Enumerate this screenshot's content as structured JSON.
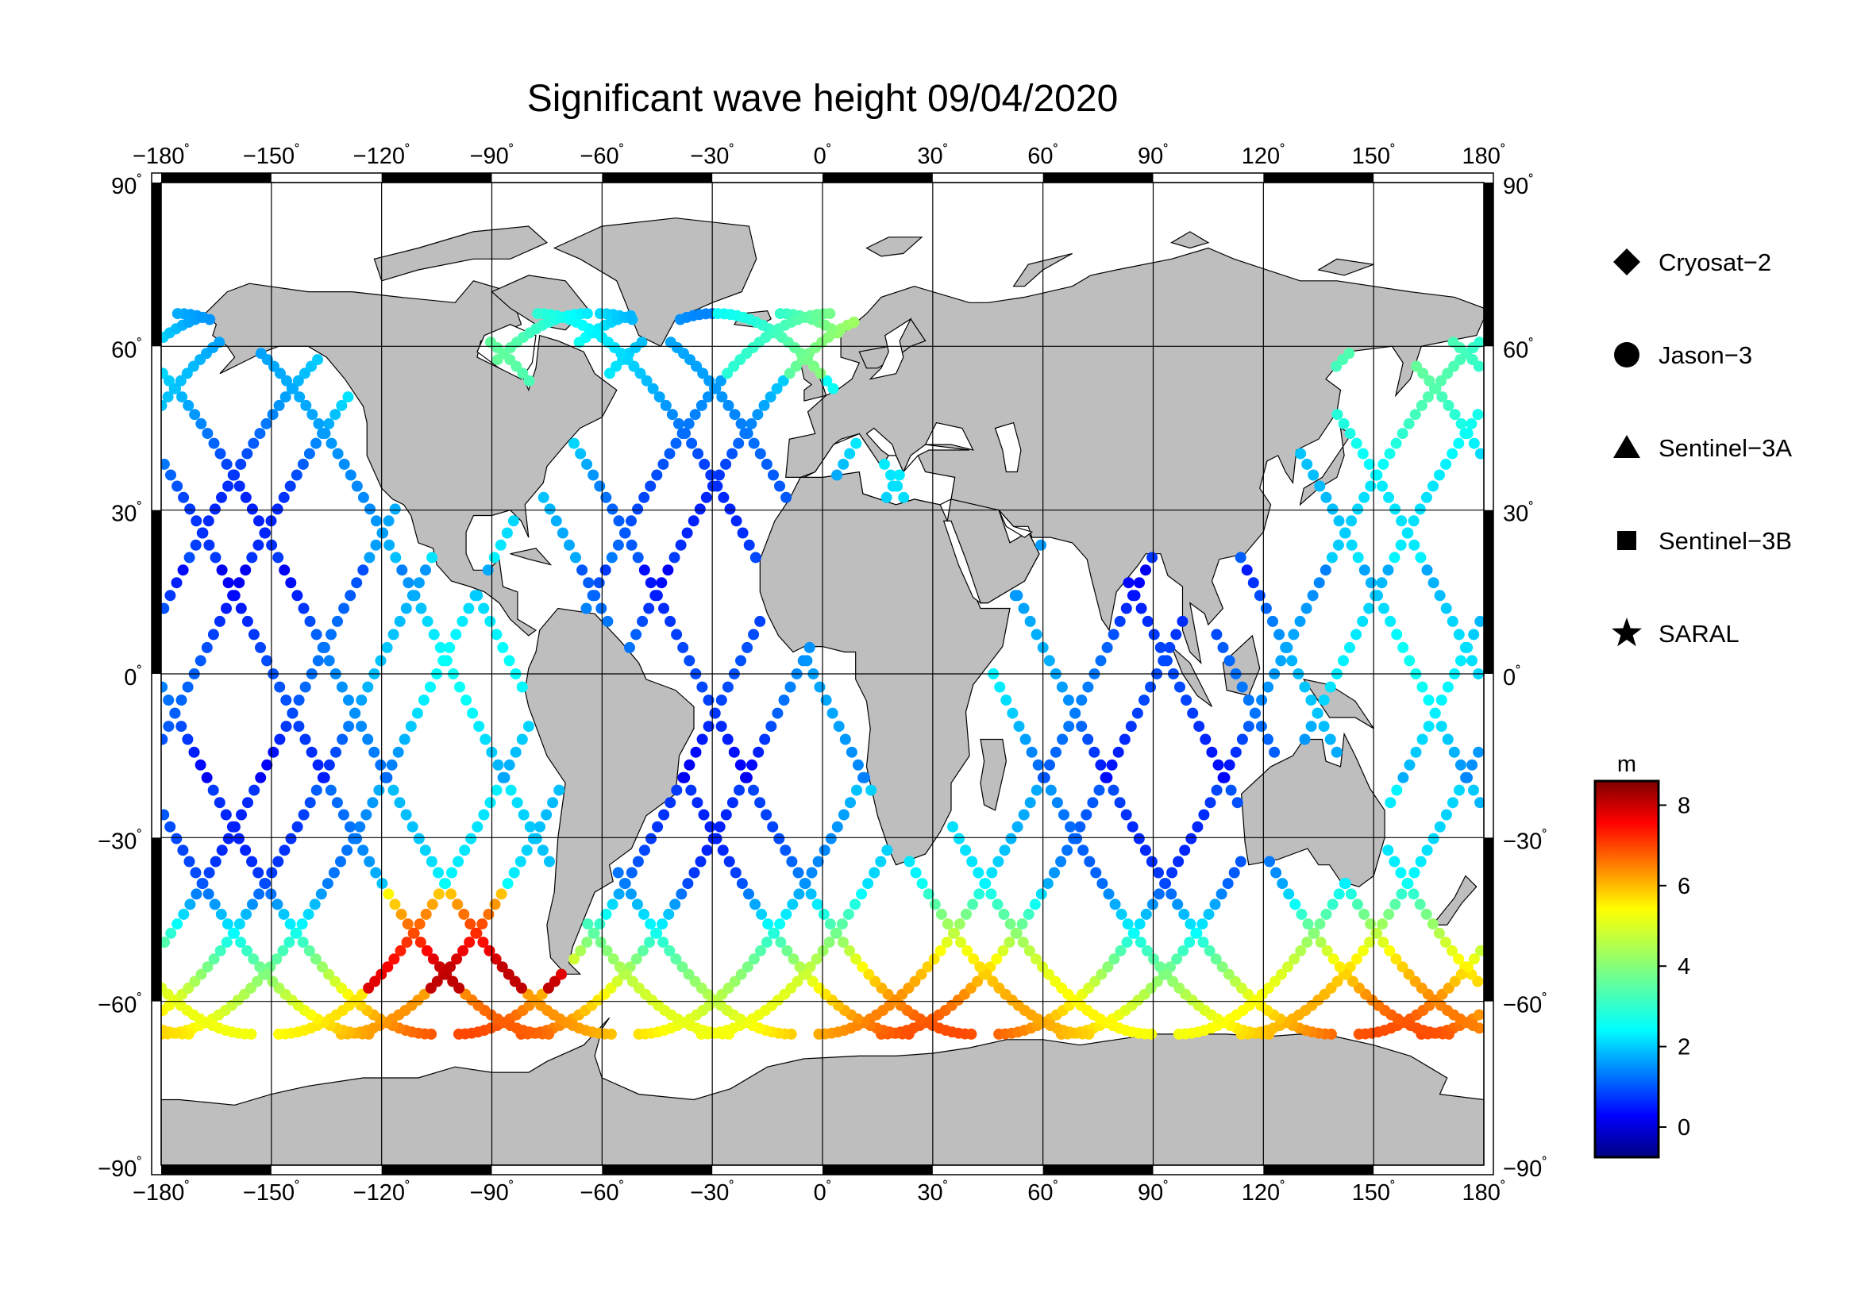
{
  "title": "Significant wave height 09/04/2020",
  "map": {
    "lon_range": [
      -180,
      180
    ],
    "lat_range": [
      -90,
      90
    ],
    "lon_ticks": [
      "−180",
      "−150",
      "−120",
      "−90",
      "−60",
      "−30",
      "0",
      "30",
      "60",
      "90",
      "120",
      "150",
      "180"
    ],
    "lat_ticks": [
      "90",
      "60",
      "30",
      "0",
      "−30",
      "−60",
      "−90"
    ],
    "degree_symbol": "˚",
    "grid": true,
    "land_color": "#bebebe",
    "ocean_color": "#ffffff"
  },
  "legend": {
    "items": [
      {
        "label": "Cryosat−2",
        "icon": "diamond"
      },
      {
        "label": "Jason−3",
        "icon": "circle"
      },
      {
        "label": "Sentinel−3A",
        "icon": "triangle"
      },
      {
        "label": "Sentinel−3B",
        "icon": "square"
      },
      {
        "label": "SARAL",
        "icon": "star"
      }
    ]
  },
  "colorbar": {
    "unit": "m",
    "min": -0.75,
    "max": 8.6,
    "ticks": [
      "0",
      "2",
      "4",
      "6",
      "8"
    ],
    "colormap": "jet"
  }
}
